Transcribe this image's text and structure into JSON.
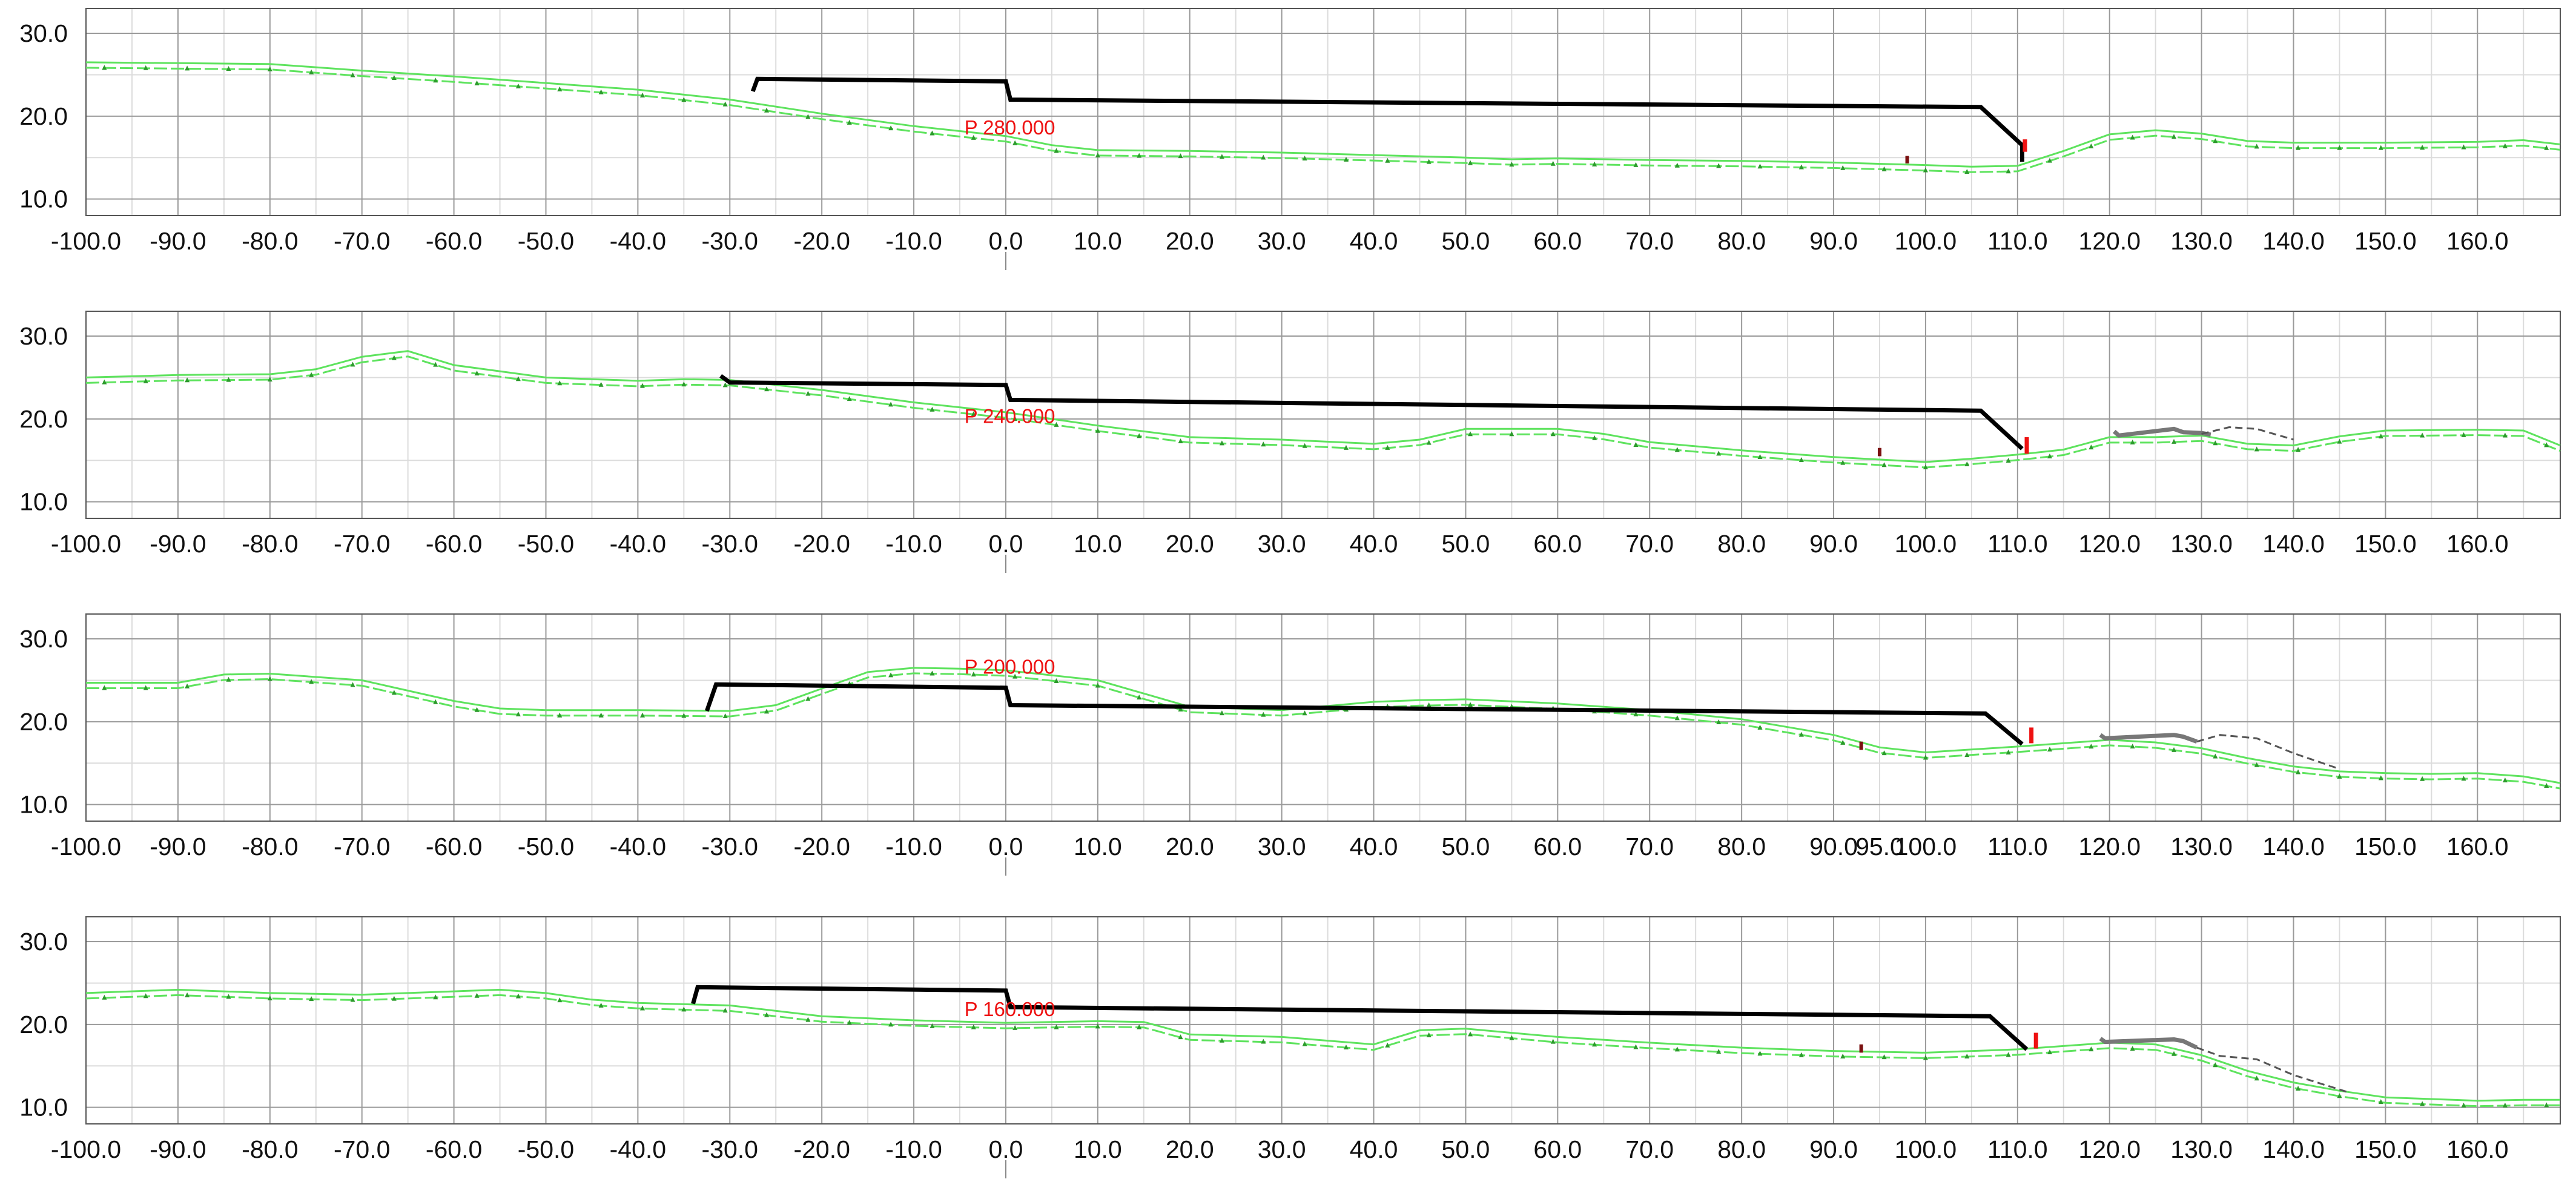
{
  "colors": {
    "grid_major": "#9a9a9a",
    "grid_minor": "#dcdcdc",
    "frame": "#555555",
    "terrain": "#5ee35e",
    "terrain_marker": "#2d9a2d",
    "design_line": "#000000",
    "label": "#ee1111",
    "marker_red": "#ee1111",
    "marker_dark": "#7a1010",
    "existing_structure": "#777777",
    "dashed_outline": "#555555"
  },
  "chart_data": [
    {
      "type": "line",
      "station_label": "P 280.000",
      "xlim": [
        -100,
        169
      ],
      "ylim": [
        8,
        33
      ],
      "x_ticks": [
        "-100.0",
        "-90.0",
        "-80.0",
        "-70.0",
        "-60.0",
        "-50.0",
        "-40.0",
        "-30.0",
        "-20.0",
        "-10.0",
        "0.0",
        "10.0",
        "20.0",
        "30.0",
        "40.0",
        "50.0",
        "60.0",
        "70.0",
        "80.0",
        "90.0",
        "100.0",
        "110.0",
        "120.0",
        "130.0",
        "140.0",
        "150.0",
        "160.0"
      ],
      "y_ticks": [
        "10.0",
        "20.0",
        "30.0"
      ],
      "grid": true,
      "series": [
        {
          "role": "terrain",
          "x": [
            -100,
            -80,
            -70,
            -60,
            -50,
            -40,
            -30,
            -20,
            -10,
            0,
            5,
            10,
            20,
            30,
            40,
            50,
            55,
            60,
            70,
            80,
            90,
            100,
            105,
            110,
            115,
            120,
            125,
            130,
            135,
            140,
            150,
            160,
            165,
            169
          ],
          "y": [
            26.5,
            26.3,
            25.5,
            24.8,
            24.0,
            23.2,
            22.0,
            20.3,
            18.8,
            17.6,
            16.5,
            15.9,
            15.8,
            15.6,
            15.3,
            15.0,
            14.8,
            14.9,
            14.7,
            14.6,
            14.4,
            14.1,
            13.9,
            14.0,
            15.8,
            17.8,
            18.3,
            17.9,
            17.0,
            16.8,
            16.8,
            16.9,
            17.1,
            16.6
          ]
        },
        {
          "role": "design",
          "x": [
            -27.5,
            -27,
            0,
            0.5,
            106,
            110.5,
            110.5
          ],
          "y": [
            23,
            24.5,
            24.2,
            22,
            21.1,
            16.5,
            14.5
          ]
        }
      ],
      "markers": [
        {
          "kind": "red",
          "x": 110.8,
          "y_bottom": 15.7,
          "y_top": 17.2
        },
        {
          "kind": "dark",
          "x": 98,
          "y_bottom": 14.3,
          "y_top": 15.2
        }
      ],
      "existing_structure": null,
      "dashed_outline": null
    },
    {
      "type": "line",
      "station_label": "P 240.000",
      "xlim": [
        -100,
        169
      ],
      "ylim": [
        8,
        33
      ],
      "x_ticks": [
        "-100.0",
        "-90.0",
        "-80.0",
        "-70.0",
        "-60.0",
        "-50.0",
        "-40.0",
        "-30.0",
        "-20.0",
        "-10.0",
        "0.0",
        "10.0",
        "20.0",
        "30.0",
        "40.0",
        "50.0",
        "60.0",
        "70.0",
        "80.0",
        "90.0",
        "100.0",
        "110.0",
        "120.0",
        "130.0",
        "140.0",
        "150.0",
        "160.0"
      ],
      "y_ticks": [
        "10.0",
        "20.0",
        "30.0"
      ],
      "grid": true,
      "series": [
        {
          "role": "terrain",
          "x": [
            -100,
            -90,
            -80,
            -75,
            -70,
            -65,
            -60,
            -50,
            -40,
            -35,
            -30,
            -20,
            -10,
            0,
            10,
            20,
            30,
            40,
            45,
            50,
            60,
            65,
            70,
            80,
            90,
            100,
            105,
            110,
            115,
            120,
            125,
            130,
            135,
            140,
            145,
            150,
            160,
            165,
            169
          ],
          "y": [
            25.0,
            25.3,
            25.4,
            26.0,
            27.5,
            28.2,
            26.5,
            25.0,
            24.6,
            24.8,
            24.7,
            23.5,
            22.0,
            20.8,
            19.2,
            17.8,
            17.5,
            17.0,
            17.5,
            18.8,
            18.8,
            18.2,
            17.2,
            16.2,
            15.4,
            14.8,
            15.2,
            15.7,
            16.3,
            17.8,
            17.8,
            18.0,
            17.0,
            16.8,
            17.9,
            18.6,
            18.7,
            18.6,
            16.8
          ]
        },
        {
          "role": "design",
          "x": [
            -31,
            -30,
            0,
            0.5,
            106,
            110.5
          ],
          "y": [
            25.2,
            24.4,
            24.1,
            22.3,
            21.0,
            16.4
          ]
        }
      ],
      "markers": [
        {
          "kind": "red",
          "x": 111,
          "y_bottom": 15.8,
          "y_top": 17.8
        },
        {
          "kind": "dark",
          "x": 95,
          "y_bottom": 15.5,
          "y_top": 16.5
        }
      ],
      "existing_structure": {
        "x": [
          120.5,
          121,
          127,
          128,
          130,
          131
        ],
        "y": [
          18.5,
          18.0,
          18.8,
          18.4,
          18.3,
          18.1
        ]
      },
      "dashed_outline": {
        "x": [
          130,
          133,
          136,
          140
        ],
        "y": [
          18.2,
          19.0,
          18.8,
          17.5
        ]
      }
    },
    {
      "type": "line",
      "station_label": "P 200.000",
      "xlim": [
        -100,
        169
      ],
      "ylim": [
        8,
        33
      ],
      "x_ticks": [
        "-100.0",
        "-90.0",
        "-80.0",
        "-70.0",
        "-60.0",
        "-50.0",
        "-40.0",
        "-30.0",
        "-20.0",
        "-10.0",
        "0.0",
        "10.0",
        "20.0",
        "30.0",
        "40.0",
        "50.0",
        "60.0",
        "70.0",
        "80.0",
        "90.0",
        "95.0",
        "100.0",
        "110.0",
        "120.0",
        "130.0",
        "140.0",
        "150.0",
        "160.0"
      ],
      "y_ticks": [
        "10.0",
        "20.0",
        "30.0"
      ],
      "grid": true,
      "series": [
        {
          "role": "terrain",
          "x": [
            -100,
            -90,
            -85,
            -80,
            -70,
            -60,
            -55,
            -50,
            -40,
            -30,
            -25,
            -20,
            -15,
            -10,
            -5,
            0,
            10,
            20,
            30,
            40,
            45,
            50,
            60,
            70,
            80,
            90,
            95,
            100,
            110,
            120,
            125,
            130,
            135,
            140,
            145,
            150,
            155,
            160,
            165,
            169
          ],
          "y": [
            24.7,
            24.7,
            25.7,
            25.8,
            25.0,
            22.5,
            21.6,
            21.4,
            21.4,
            21.3,
            22.0,
            24.0,
            26.0,
            26.5,
            26.4,
            26.2,
            25.0,
            21.8,
            21.4,
            22.4,
            22.6,
            22.7,
            22.2,
            21.4,
            20.3,
            18.4,
            16.9,
            16.3,
            17.0,
            17.8,
            17.5,
            16.8,
            15.6,
            14.6,
            14.0,
            13.8,
            13.7,
            13.8,
            13.4,
            12.6
          ]
        },
        {
          "role": "design",
          "x": [
            -32.5,
            -31.5,
            0,
            0.5,
            106.5,
            110.5
          ],
          "y": [
            21.3,
            24.5,
            24.1,
            22.0,
            21.0,
            17.3
          ]
        }
      ],
      "markers": [
        {
          "kind": "red",
          "x": 111.5,
          "y_bottom": 17.4,
          "y_top": 19.3
        },
        {
          "kind": "dark",
          "x": 93,
          "y_bottom": 16.6,
          "y_top": 17.6
        }
      ],
      "existing_structure": {
        "x": [
          119,
          119.5,
          127,
          128,
          129.5
        ],
        "y": [
          18.4,
          18.0,
          18.4,
          18.2,
          17.6
        ]
      },
      "dashed_outline": {
        "x": [
          129.5,
          132,
          136,
          140,
          145
        ],
        "y": [
          17.6,
          18.4,
          18.0,
          16.2,
          14.3
        ]
      }
    },
    {
      "type": "line",
      "station_label": "P 160.000",
      "xlim": [
        -100,
        169
      ],
      "ylim": [
        8,
        33
      ],
      "x_ticks": [
        "-100.0",
        "-90.0",
        "-80.0",
        "-70.0",
        "-60.0",
        "-50.0",
        "-40.0",
        "-30.0",
        "-20.0",
        "-10.0",
        "0.0",
        "10.0",
        "20.0",
        "30.0",
        "40.0",
        "50.0",
        "60.0",
        "70.0",
        "80.0",
        "90.0",
        "100.0",
        "110.0",
        "120.0",
        "130.0",
        "140.0",
        "150.0",
        "160.0"
      ],
      "y_ticks": [
        "10.0",
        "20.0",
        "30.0"
      ],
      "grid": true,
      "series": [
        {
          "role": "terrain",
          "x": [
            -100,
            -90,
            -80,
            -70,
            -60,
            -55,
            -50,
            -45,
            -40,
            -30,
            -20,
            -10,
            0,
            10,
            15,
            20,
            30,
            40,
            45,
            50,
            60,
            70,
            80,
            90,
            100,
            110,
            120,
            125,
            130,
            135,
            140,
            145,
            150,
            160,
            165,
            169
          ],
          "y": [
            23.8,
            24.2,
            23.8,
            23.6,
            24.0,
            24.2,
            23.8,
            23.0,
            22.6,
            22.3,
            21.0,
            20.5,
            20.2,
            20.4,
            20.3,
            18.8,
            18.5,
            17.6,
            19.3,
            19.5,
            18.5,
            17.8,
            17.2,
            16.8,
            16.6,
            17.0,
            17.8,
            17.6,
            16.3,
            14.4,
            13.0,
            12.0,
            11.2,
            10.8,
            10.9,
            10.9
          ]
        },
        {
          "role": "design",
          "x": [
            -34,
            -33.5,
            0,
            0.5,
            107,
            111
          ],
          "y": [
            22.5,
            24.5,
            24.1,
            22.1,
            21.0,
            17.0
          ]
        }
      ],
      "markers": [
        {
          "kind": "red",
          "x": 112,
          "y_bottom": 17.1,
          "y_top": 19.0
        },
        {
          "kind": "dark",
          "x": 93,
          "y_bottom": 16.6,
          "y_top": 17.6
        }
      ],
      "existing_structure": {
        "x": [
          119,
          119.5,
          127,
          128,
          129.5
        ],
        "y": [
          18.3,
          17.9,
          18.2,
          18.0,
          17.2
        ]
      },
      "dashed_outline": {
        "x": [
          129.5,
          132,
          136,
          140,
          146
        ],
        "y": [
          17.2,
          16.2,
          15.8,
          13.9,
          11.8
        ]
      }
    }
  ]
}
